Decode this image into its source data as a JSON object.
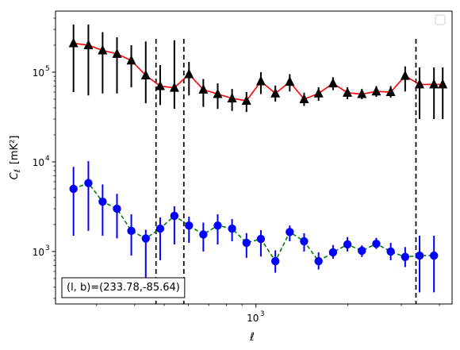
{
  "chart_data": {
    "type": "scatter",
    "title": "",
    "xlabel": "ℓ",
    "ylabel_main": "C",
    "ylabel_sub": "ℓ",
    "ylabel_unit": "[mK²]",
    "xscale": "log",
    "yscale": "log",
    "xlim": [
      220,
      4400
    ],
    "ylim": [
      260,
      480000
    ],
    "x_tick_labels": [
      {
        "x": 1000,
        "label": "10",
        "exp": "3"
      }
    ],
    "y_tick_labels": [
      {
        "y": 1000,
        "label": "10",
        "exp": "3"
      },
      {
        "y": 10000,
        "label": "10",
        "exp": "4"
      },
      {
        "y": 100000,
        "label": "10",
        "exp": "5"
      }
    ],
    "vlines": [
      470,
      580,
      3350
    ],
    "annotation": "(l, b)=(233.78,-85.64)",
    "legend": "top-right (empty)",
    "grid": false,
    "series": [
      {
        "marker": "triangle",
        "color": "#000000",
        "line_color": "#ff0000",
        "line_style": "solid",
        "x": [
          252,
          282,
          314,
          350,
          390,
          435,
          485,
          540,
          603,
          672,
          749,
          835,
          931,
          1038,
          1158,
          1291,
          1439,
          1605,
          1790,
          1996,
          2226,
          2482,
          2768,
          3087,
          3442,
          3838,
          4100
        ],
        "y": [
          210000,
          200000,
          175000,
          160000,
          135000,
          92000,
          70000,
          67000,
          95000,
          64000,
          57000,
          51000,
          48000,
          79000,
          58000,
          78000,
          50000,
          58000,
          75000,
          59000,
          57000,
          61000,
          60000,
          91000,
          73000,
          73000,
          73000
        ],
        "err_lo": [
          150000,
          145000,
          117000,
          102000,
          67000,
          47000,
          27000,
          28000,
          40000,
          23000,
          18000,
          14000,
          12000,
          22000,
          11000,
          17000,
          8000,
          10000,
          12000,
          9000,
          7000,
          8000,
          8000,
          30000,
          43000,
          43000,
          43000
        ],
        "err_hi": [
          130000,
          140000,
          105000,
          85000,
          65000,
          128000,
          50000,
          160000,
          35000,
          20000,
          18000,
          14000,
          12000,
          21000,
          13000,
          17000,
          9000,
          10000,
          13000,
          9000,
          8000,
          9000,
          10000,
          25000,
          40000,
          40000,
          40000
        ]
      },
      {
        "marker": "circle",
        "color": "#0000ff",
        "line_color": "#008000",
        "line_style": "dashed",
        "x": [
          252,
          282,
          314,
          350,
          390,
          435,
          485,
          540,
          603,
          672,
          749,
          835,
          931,
          1038,
          1158,
          1291,
          1439,
          1605,
          1790,
          1996,
          2226,
          2482,
          2768,
          3087,
          3442,
          3838
        ],
        "y": [
          5000,
          5800,
          3600,
          3000,
          1700,
          1400,
          1800,
          2500,
          1950,
          1550,
          1950,
          1800,
          1250,
          1380,
          780,
          1650,
          1300,
          780,
          980,
          1200,
          1020,
          1220,
          1000,
          870,
          900,
          900
        ],
        "err_lo": [
          3500,
          4100,
          2100,
          1600,
          800,
          900,
          1000,
          1300,
          700,
          550,
          750,
          500,
          400,
          500,
          200,
          350,
          300,
          150,
          150,
          200,
          150,
          150,
          200,
          200,
          550,
          550
        ],
        "err_hi": [
          3800,
          4400,
          2000,
          1400,
          900,
          350,
          600,
          700,
          500,
          550,
          650,
          500,
          350,
          350,
          250,
          300,
          300,
          200,
          200,
          250,
          150,
          200,
          250,
          250,
          600,
          600
        ]
      }
    ]
  }
}
